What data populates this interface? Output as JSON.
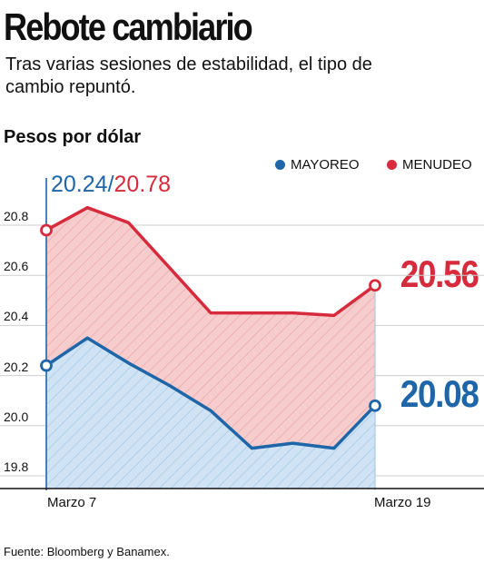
{
  "title": "Rebote cambiario",
  "subtitle": "Tras varias sesiones de estabilidad, el tipo de cambio repuntó.",
  "unit_label": "Pesos por dólar",
  "source": "Fuente: Bloomberg y Banamex.",
  "start_values": {
    "mayoreo": "20.24",
    "separator": "/",
    "menudeo": "20.78"
  },
  "end_values": {
    "menudeo": "20.56",
    "mayoreo": "20.08"
  },
  "colors": {
    "mayoreo": "#1f66a8",
    "menudeo": "#d52b3d",
    "mayoreo_fill": "#cfe3f4",
    "menudeo_fill": "#f6cccc"
  },
  "chart_data": {
    "type": "area",
    "title": "Rebote cambiario",
    "ylabel": "Pesos por dólar",
    "ylim": [
      19.8,
      20.9
    ],
    "yticks": [
      "20.8",
      "20.6",
      "20.4",
      "20.2",
      "20.0",
      "19.8"
    ],
    "x_labels": [
      "Marzo 7",
      "Marzo 19"
    ],
    "x": [
      0,
      1,
      2,
      3,
      4,
      5,
      6,
      7,
      8
    ],
    "legend_position": "top-right",
    "series": [
      {
        "name": "MAYOREO",
        "color": "#1f66a8",
        "values": [
          20.24,
          20.35,
          20.25,
          20.16,
          20.06,
          19.91,
          19.93,
          19.91,
          20.08
        ]
      },
      {
        "name": "MENUDEO",
        "color": "#d52b3d",
        "values": [
          20.78,
          20.87,
          20.81,
          20.63,
          20.45,
          20.45,
          20.45,
          20.44,
          20.56
        ]
      }
    ]
  }
}
